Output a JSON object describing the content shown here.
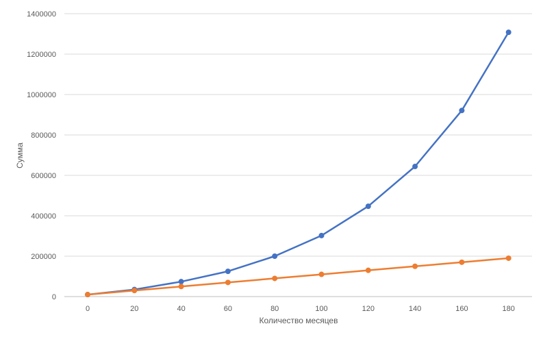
{
  "chart_data": {
    "type": "line",
    "title": "",
    "xlabel": "Количество месяцев",
    "ylabel": "Сумма",
    "x": [
      0,
      20,
      40,
      60,
      80,
      100,
      120,
      140,
      160,
      180
    ],
    "x_tick_labels": [
      "0",
      "20",
      "40",
      "60",
      "80",
      "100",
      "120",
      "140",
      "160",
      "180"
    ],
    "y_tick_labels": [
      "0",
      "200000",
      "400000",
      "600000",
      "800000",
      "1000000",
      "1200000",
      "1400000"
    ],
    "ylim": [
      0,
      1400000
    ],
    "grid": "horizontal",
    "legend": "none",
    "series": [
      {
        "color": "#4472c4",
        "values": [
          10000,
          35000,
          74000,
          125000,
          200000,
          302000,
          447000,
          644000,
          921000,
          1308000
        ]
      },
      {
        "color": "#ed7d31",
        "values": [
          10000,
          30000,
          50000,
          70000,
          90000,
          110000,
          130000,
          150000,
          170000,
          190000
        ]
      }
    ],
    "colors": {
      "grid": "#d9d9d9",
      "axis": "#bfbfbf",
      "text": "#595959"
    }
  }
}
